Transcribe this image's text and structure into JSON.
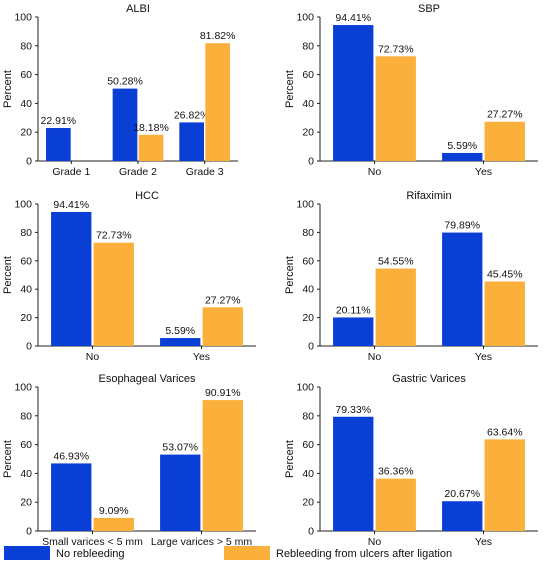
{
  "colors": {
    "no_rebleeding": "#0a3fd6",
    "rebleeding": "#fbb03b"
  },
  "legend": {
    "items": [
      {
        "label": "No rebleeding",
        "color": "#0a3fd6"
      },
      {
        "label": "Rebleeding from ulcers after ligation",
        "color": "#fbb03b"
      }
    ]
  },
  "chart_data": [
    {
      "type": "bar",
      "title": "ALBI",
      "ylabel": "Percent",
      "ylim": [
        0,
        100
      ],
      "yticks": [
        0,
        20,
        40,
        60,
        80,
        100
      ],
      "categories": [
        "Grade 1",
        "Grade 2",
        "Grade 3"
      ],
      "series": [
        {
          "name": "No rebleeding",
          "values": [
            22.91,
            50.28,
            26.82
          ],
          "labels": [
            "22.91%",
            "50.28%",
            "26.82%"
          ]
        },
        {
          "name": "Rebleeding from ulcers after ligation",
          "values": [
            null,
            18.18,
            81.82
          ],
          "labels": [
            "",
            "18.18%",
            "81.82%"
          ]
        }
      ]
    },
    {
      "type": "bar",
      "title": "SBP",
      "ylabel": "Percent",
      "ylim": [
        0,
        100
      ],
      "yticks": [
        0,
        20,
        40,
        60,
        80,
        100
      ],
      "categories": [
        "No",
        "Yes"
      ],
      "series": [
        {
          "name": "No rebleeding",
          "values": [
            94.41,
            5.59
          ],
          "labels": [
            "94.41%",
            "5.59%"
          ]
        },
        {
          "name": "Rebleeding from ulcers after ligation",
          "values": [
            72.73,
            27.27
          ],
          "labels": [
            "72.73%",
            "27.27%"
          ]
        }
      ]
    },
    {
      "type": "bar",
      "title": "HCC",
      "ylabel": "Percent",
      "ylim": [
        0,
        100
      ],
      "yticks": [
        0,
        20,
        40,
        60,
        80,
        100
      ],
      "categories": [
        "No",
        "Yes"
      ],
      "series": [
        {
          "name": "No rebleeding",
          "values": [
            94.41,
            5.59
          ],
          "labels": [
            "94.41%",
            "5.59%"
          ]
        },
        {
          "name": "Rebleeding from ulcers after ligation",
          "values": [
            72.73,
            27.27
          ],
          "labels": [
            "72.73%",
            "27.27%"
          ]
        }
      ]
    },
    {
      "type": "bar",
      "title": "Rifaximin",
      "ylabel": "Percent",
      "ylim": [
        0,
        100
      ],
      "yticks": [
        0,
        20,
        40,
        60,
        80,
        100
      ],
      "categories": [
        "No",
        "Yes"
      ],
      "series": [
        {
          "name": "No rebleeding",
          "values": [
            20.11,
            79.89
          ],
          "labels": [
            "20.11%",
            "79.89%"
          ]
        },
        {
          "name": "Rebleeding from ulcers after ligation",
          "values": [
            54.55,
            45.45
          ],
          "labels": [
            "54.55%",
            "45.45%"
          ]
        }
      ]
    },
    {
      "type": "bar",
      "title": "Esophageal Varices",
      "ylabel": "Percent",
      "ylim": [
        0,
        100
      ],
      "yticks": [
        0,
        20,
        40,
        60,
        80,
        100
      ],
      "categories": [
        "Small varices < 5 mm",
        "Large varices > 5 mm"
      ],
      "series": [
        {
          "name": "No rebleeding",
          "values": [
            46.93,
            53.07
          ],
          "labels": [
            "46.93%",
            "53.07%"
          ]
        },
        {
          "name": "Rebleeding from ulcers after ligation",
          "values": [
            9.09,
            90.91
          ],
          "labels": [
            "9.09%",
            "90.91%"
          ]
        }
      ]
    },
    {
      "type": "bar",
      "title": "Gastric Varices",
      "ylabel": "Percent",
      "ylim": [
        0,
        100
      ],
      "yticks": [
        0,
        20,
        40,
        60,
        80,
        100
      ],
      "categories": [
        "No",
        "Yes"
      ],
      "series": [
        {
          "name": "No rebleeding",
          "values": [
            79.33,
            20.67
          ],
          "labels": [
            "79.33%",
            "20.67%"
          ]
        },
        {
          "name": "Rebleeding from ulcers after ligation",
          "values": [
            36.36,
            63.64
          ],
          "labels": [
            "36.36%",
            "63.64%"
          ]
        }
      ]
    }
  ]
}
